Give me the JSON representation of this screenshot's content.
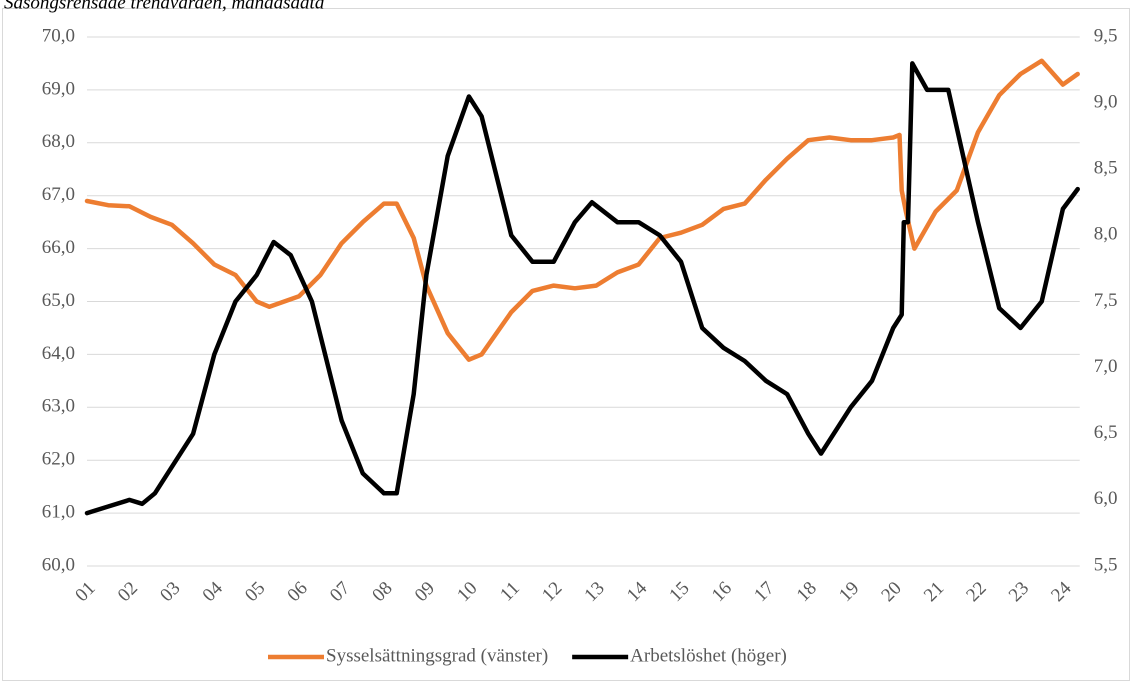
{
  "chart_data": {
    "type": "line",
    "title": "Säsongsrensade trendvärden, månadsdata",
    "xlim": [
      1,
      24.35
    ],
    "xticks": [
      {
        "value": 1,
        "label": "01"
      },
      {
        "value": 2,
        "label": "02"
      },
      {
        "value": 3,
        "label": "03"
      },
      {
        "value": 4,
        "label": "04"
      },
      {
        "value": 5,
        "label": "05"
      },
      {
        "value": 6,
        "label": "06"
      },
      {
        "value": 7,
        "label": "07"
      },
      {
        "value": 8,
        "label": "08"
      },
      {
        "value": 9,
        "label": "09"
      },
      {
        "value": 10,
        "label": "10"
      },
      {
        "value": 11,
        "label": "11"
      },
      {
        "value": 12,
        "label": "12"
      },
      {
        "value": 13,
        "label": "13"
      },
      {
        "value": 14,
        "label": "14"
      },
      {
        "value": 15,
        "label": "15"
      },
      {
        "value": 16,
        "label": "16"
      },
      {
        "value": 17,
        "label": "17"
      },
      {
        "value": 18,
        "label": "18"
      },
      {
        "value": 19,
        "label": "19"
      },
      {
        "value": 20,
        "label": "20"
      },
      {
        "value": 21,
        "label": "21"
      },
      {
        "value": 22,
        "label": "22"
      },
      {
        "value": 23,
        "label": "23"
      },
      {
        "value": 24,
        "label": "24"
      }
    ],
    "ylim": [
      60,
      70
    ],
    "yticks": [
      {
        "value": 60,
        "label": "60,0"
      },
      {
        "value": 61,
        "label": "61,0"
      },
      {
        "value": 62,
        "label": "62,0"
      },
      {
        "value": 63,
        "label": "63,0"
      },
      {
        "value": 64,
        "label": "64,0"
      },
      {
        "value": 65,
        "label": "65,0"
      },
      {
        "value": 66,
        "label": "66,0"
      },
      {
        "value": 67,
        "label": "67,0"
      },
      {
        "value": 68,
        "label": "68,0"
      },
      {
        "value": 69,
        "label": "69,0"
      },
      {
        "value": 70,
        "label": "70,0"
      }
    ],
    "y2lim": [
      5.5,
      9.5
    ],
    "y2ticks": [
      {
        "value": 5.5,
        "label": "5,5"
      },
      {
        "value": 6,
        "label": "6,0"
      },
      {
        "value": 6.5,
        "label": "6,5"
      },
      {
        "value": 7,
        "label": "7,0"
      },
      {
        "value": 7.5,
        "label": "7,5"
      },
      {
        "value": 8,
        "label": "8,0"
      },
      {
        "value": 8.5,
        "label": "8,5"
      },
      {
        "value": 9,
        "label": "9,0"
      },
      {
        "value": 9.5,
        "label": "9,5"
      }
    ],
    "grid": true,
    "legend": "bottom",
    "series": [
      {
        "name": "Sysselsättningsgrad (vänster)",
        "color": "#ed7d31",
        "axis": "y",
        "x": [
          1,
          1.5,
          2,
          2.5,
          3,
          3.5,
          4,
          4.5,
          5,
          5.3,
          6,
          6.5,
          7,
          7.5,
          8,
          8.3,
          8.7,
          9,
          9.5,
          10,
          10.3,
          11,
          11.5,
          12,
          12.5,
          13,
          13.5,
          14,
          14.5,
          15,
          15.5,
          16,
          16.5,
          17,
          17.5,
          18,
          18.5,
          19,
          19.5,
          20,
          20.15,
          20.2,
          20.3,
          20.5,
          21,
          21.5,
          22,
          22.5,
          23,
          23.5,
          24,
          24.35
        ],
        "values": [
          66.9,
          66.82,
          66.8,
          66.6,
          66.45,
          66.1,
          65.7,
          65.5,
          65.0,
          64.9,
          65.1,
          65.5,
          66.1,
          66.5,
          66.85,
          66.85,
          66.2,
          65.3,
          64.4,
          63.9,
          64.0,
          64.8,
          65.2,
          65.3,
          65.25,
          65.3,
          65.55,
          65.7,
          66.2,
          66.3,
          66.45,
          66.75,
          66.85,
          67.3,
          67.7,
          68.05,
          68.1,
          68.05,
          68.05,
          68.1,
          68.15,
          67.1,
          66.7,
          66.0,
          66.7,
          67.1,
          68.2,
          68.9,
          69.3,
          69.55,
          69.1,
          69.3
        ]
      },
      {
        "name": "Arbetslöshet (höger)",
        "color": "#000000",
        "axis": "y2",
        "x": [
          1,
          1.5,
          2,
          2.3,
          2.6,
          3,
          3.5,
          4,
          4.5,
          5,
          5.4,
          5.8,
          6.3,
          7,
          7.5,
          8,
          8.3,
          8.7,
          9,
          9.5,
          10,
          10.3,
          11,
          11.5,
          12,
          12.5,
          12.9,
          13.5,
          14,
          14.5,
          15,
          15.5,
          16,
          16.5,
          17,
          17.5,
          18,
          18.3,
          19,
          19.5,
          20,
          20.2,
          20.25,
          20.35,
          20.45,
          20.8,
          21.3,
          22,
          22.5,
          23,
          23.5,
          24,
          24.35
        ],
        "values": [
          5.9,
          5.95,
          6.0,
          5.97,
          6.05,
          6.25,
          6.5,
          7.1,
          7.5,
          7.7,
          7.95,
          7.85,
          7.5,
          6.6,
          6.2,
          6.05,
          6.05,
          6.8,
          7.7,
          8.6,
          9.05,
          8.9,
          8.0,
          7.8,
          7.8,
          8.1,
          8.25,
          8.1,
          8.1,
          8.0,
          7.8,
          7.3,
          7.15,
          7.05,
          6.9,
          6.8,
          6.5,
          6.35,
          6.7,
          6.9,
          7.3,
          7.4,
          8.1,
          8.1,
          9.3,
          9.1,
          9.1,
          8.1,
          7.45,
          7.3,
          7.5,
          8.2,
          8.35
        ]
      }
    ]
  }
}
